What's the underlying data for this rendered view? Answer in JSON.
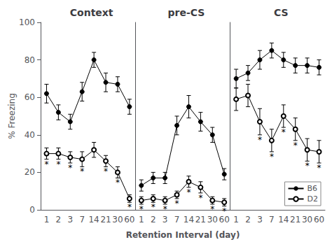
{
  "chart_data": [
    {
      "type": "line",
      "title": "Context",
      "categories": [
        "1",
        "2",
        "3",
        "7",
        "14",
        "21",
        "30",
        "60"
      ],
      "ylabel": "% Freezing",
      "ylim": [
        0,
        100
      ],
      "yticks": [
        0,
        20,
        40,
        60,
        80,
        100
      ],
      "grid": false,
      "series": [
        {
          "name": "B6",
          "color": "#000000",
          "marker": "filled_circle",
          "values": [
            62,
            52,
            47,
            63,
            80,
            68,
            67,
            55
          ],
          "errors": [
            5,
            4,
            4,
            5,
            4,
            5,
            4,
            4
          ]
        },
        {
          "name": "D2",
          "color": "#000000",
          "marker": "open_circle",
          "values": [
            30,
            30,
            28,
            27,
            32,
            26,
            20,
            6
          ],
          "errors": [
            3,
            3,
            3,
            4,
            4,
            3,
            3,
            2
          ],
          "annotations": [
            "*",
            "*",
            "*",
            "*",
            null,
            "*",
            "*",
            "*"
          ]
        }
      ]
    },
    {
      "type": "line",
      "title": "pre-CS",
      "categories": [
        "1",
        "2",
        "3",
        "7",
        "14",
        "21",
        "30",
        "60"
      ],
      "xlabel": "Retention Interval (day)",
      "ylim": [
        0,
        100
      ],
      "yticks": [
        0,
        20,
        40,
        60,
        80,
        100
      ],
      "grid": false,
      "tick_labels": "x",
      "series": [
        {
          "name": "B6",
          "color": "#000000",
          "marker": "filled_circle",
          "values": [
            13,
            17,
            17,
            45,
            55,
            47,
            40,
            19
          ],
          "errors": [
            3,
            3,
            3,
            5,
            6,
            5,
            4,
            3
          ]
        },
        {
          "name": "D2",
          "color": "#000000",
          "marker": "open_circle",
          "values": [
            5,
            6,
            5,
            8,
            15,
            12,
            5,
            4
          ],
          "errors": [
            2,
            2,
            2,
            2,
            3,
            3,
            2,
            2
          ],
          "annotations": [
            "*",
            "*",
            "*",
            "*",
            "*",
            "*",
            "*",
            "*"
          ]
        }
      ]
    },
    {
      "type": "line",
      "title": "CS",
      "categories": [
        "1",
        "2",
        "3",
        "7",
        "14",
        "21",
        "30",
        "60"
      ],
      "ylim": [
        0,
        100
      ],
      "yticks": [
        0,
        20,
        40,
        60,
        80,
        100
      ],
      "grid": false,
      "tick_labels": "x",
      "legend": "lower right",
      "series": [
        {
          "name": "B6",
          "color": "#000000",
          "marker": "filled_circle",
          "values": [
            70,
            73,
            80,
            85,
            80,
            77,
            77,
            76
          ],
          "errors": [
            5,
            4,
            5,
            4,
            4,
            4,
            4,
            4
          ]
        },
        {
          "name": "D2",
          "color": "#000000",
          "marker": "open_circle",
          "values": [
            59,
            61,
            47,
            37,
            50,
            43,
            32,
            31
          ],
          "errors": [
            6,
            6,
            7,
            6,
            6,
            6,
            6,
            6
          ],
          "annotations": [
            null,
            null,
            "*",
            "*",
            "*",
            "*",
            "*",
            "*"
          ]
        }
      ]
    }
  ]
}
